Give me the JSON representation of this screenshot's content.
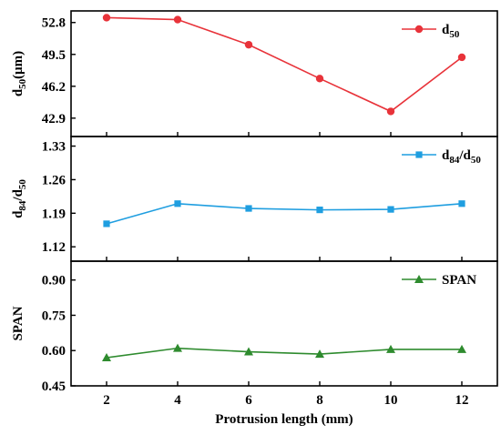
{
  "chart_data": {
    "type": "line",
    "shared_x": {
      "label": "Protrusion length (mm)",
      "values": [
        2,
        4,
        6,
        8,
        10,
        12
      ],
      "ticks": [
        "2",
        "4",
        "6",
        "8",
        "10",
        "12"
      ],
      "xlim": [
        1,
        13
      ]
    },
    "panels": [
      {
        "ylabel": {
          "main": "d",
          "sub": "50",
          "tail": "(μm)"
        },
        "ylim": [
          41,
          54
        ],
        "yticks": [
          52.8,
          49.5,
          46.2,
          42.9
        ],
        "ytick_labels": [
          "52.8",
          "49.5",
          "46.2",
          "42.9"
        ],
        "series": [
          {
            "name": {
              "main": "d",
              "sub": "50",
              "tail": ""
            },
            "color": "#e8333a",
            "marker": "circle",
            "values": [
              53.3,
              53.1,
              50.5,
              47.0,
              43.6,
              49.2
            ]
          }
        ],
        "legend": "top-right"
      },
      {
        "ylabel": {
          "main": "d",
          "sub": "84",
          "tail": "/d",
          "sub2": "50"
        },
        "ylim": [
          1.09,
          1.35
        ],
        "yticks": [
          1.33,
          1.26,
          1.19,
          1.12
        ],
        "ytick_labels": [
          "1.33",
          "1.26",
          "1.19",
          "1.12"
        ],
        "series": [
          {
            "name": {
              "main": "d",
              "sub": "84",
              "tail": "/d",
              "sub2": "50"
            },
            "color": "#1f9ee0",
            "marker": "square",
            "values": [
              1.168,
              1.21,
              1.2,
              1.197,
              1.198,
              1.21
            ]
          }
        ],
        "legend": "top-right"
      },
      {
        "ylabel": {
          "main": "SPAN",
          "sub": "",
          "tail": ""
        },
        "ylim": [
          0.45,
          0.98
        ],
        "yticks": [
          0.9,
          0.75,
          0.6,
          0.45
        ],
        "ytick_labels": [
          "0.90",
          "0.75",
          "0.60",
          "0.45"
        ],
        "series": [
          {
            "name": {
              "main": "SPAN",
              "sub": "",
              "tail": ""
            },
            "color": "#2e8b2e",
            "marker": "triangle",
            "values": [
              0.57,
              0.61,
              0.595,
              0.585,
              0.605,
              0.605
            ]
          }
        ],
        "legend": "top-right"
      }
    ]
  }
}
